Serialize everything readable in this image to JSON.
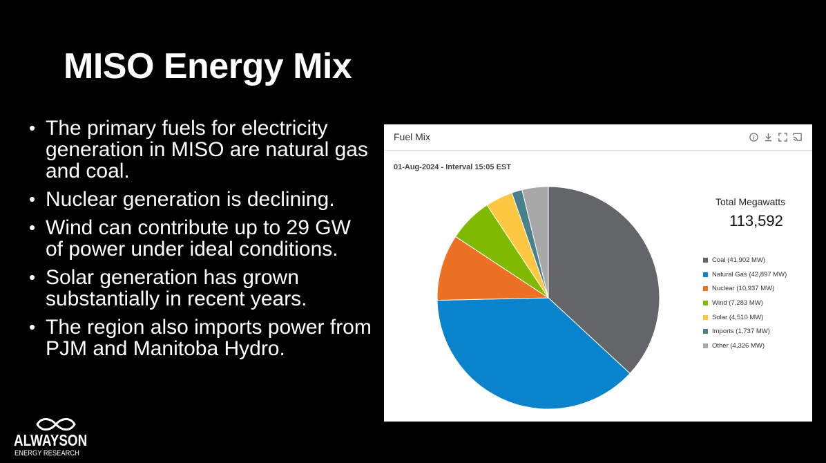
{
  "slide": {
    "title": "MISO Energy Mix",
    "bullets": [
      "The primary fuels for electricity generation in MISO are natural gas and coal.",
      "Nuclear generation is declining.",
      "Wind can contribute up to 29 GW of power under ideal conditions.",
      "Solar generation has grown substantially in recent years.",
      "The region also imports power from PJM and Manitoba Hydro."
    ]
  },
  "logo": {
    "name": "ALWAYSON",
    "tagline": "ENERGY RESEARCH"
  },
  "panel": {
    "title": "Fuel Mix",
    "tools": [
      "info-icon",
      "download-icon",
      "fullscreen-icon",
      "cast-icon"
    ],
    "interval": "01-Aug-2024 - Interval 15:05 EST",
    "total_label": "Total Megawatts",
    "total_value": "113,592"
  },
  "chart_data": {
    "type": "pie",
    "title": "",
    "slices": [
      {
        "label": "Coal (41,902 MW)",
        "value": 41902,
        "color": "#646569"
      },
      {
        "label": "Natural Gas (42,897 MW)",
        "value": 42897,
        "color": "#0883cc"
      },
      {
        "label": "Nuclear (10,937 MW)",
        "value": 10937,
        "color": "#ed7125"
      },
      {
        "label": "Wind (7,283 MW)",
        "value": 7283,
        "color": "#7fba00"
      },
      {
        "label": "Solar (4,510 MW)",
        "value": 4510,
        "color": "#fdc741"
      },
      {
        "label": "Imports (1,737 MW)",
        "value": 1737,
        "color": "#4a7f8c"
      },
      {
        "label": "Other (4,326 MW)",
        "value": 4326,
        "color": "#a8a8a8"
      }
    ],
    "start": "top",
    "direction": "clockwise",
    "legend": "right"
  }
}
